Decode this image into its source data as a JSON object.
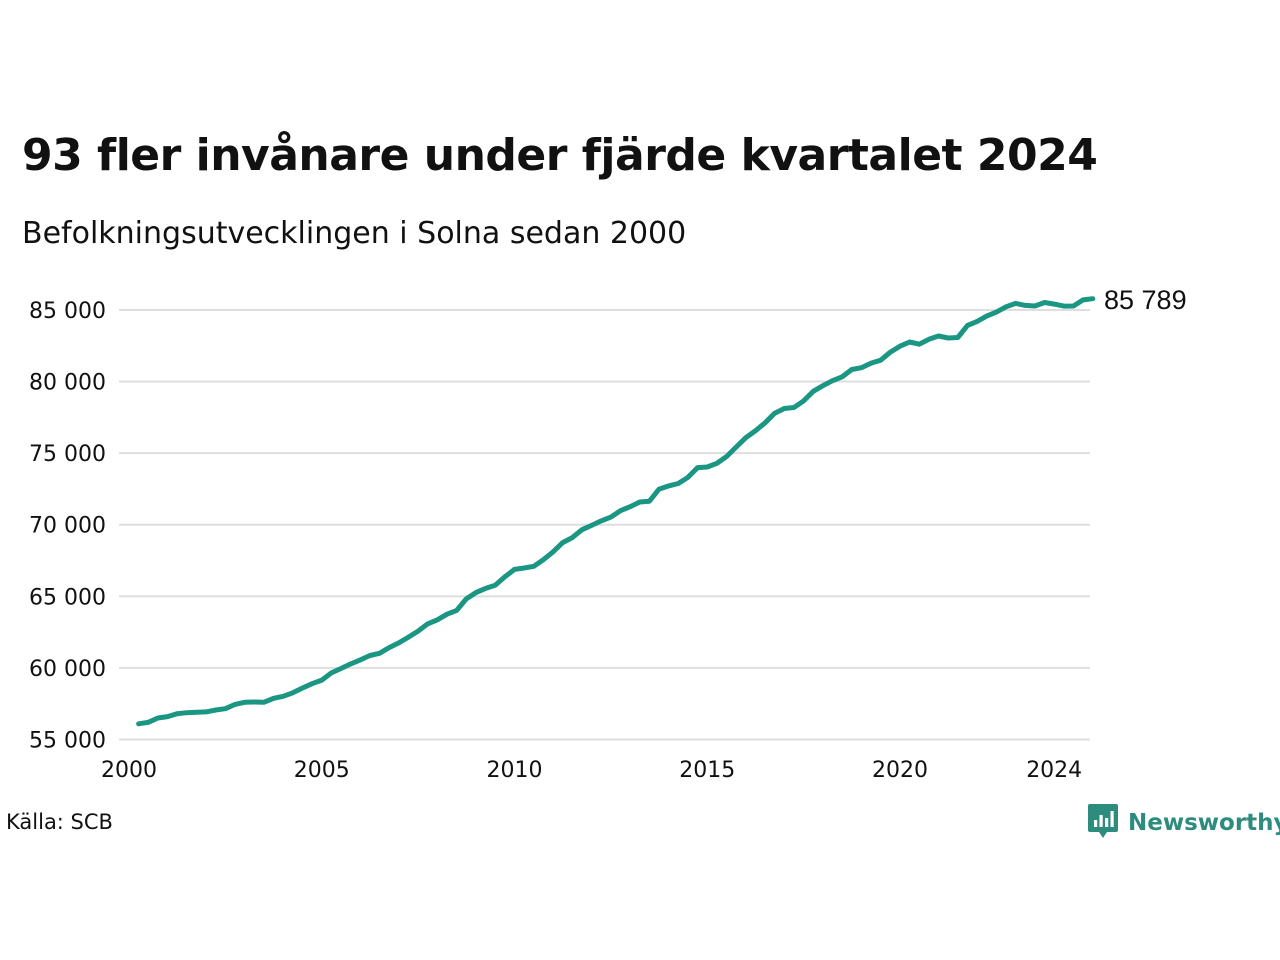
{
  "title": "93 fler invånare under fjärde kvartalet 2024",
  "subtitle": "Befolkningsutvecklingen i Solna sedan 2000",
  "source": "Källa: SCB",
  "brand": {
    "name": "Newsworthy",
    "logo_icon": "bar-chart-speech-bubble-icon",
    "color": "#2e8c7f"
  },
  "colors": {
    "line": "#1a9683",
    "grid": "#dedede",
    "text": "#111111"
  },
  "chart_data": {
    "type": "line",
    "title": "93 fler invånare under fjärde kvartalet 2024",
    "subtitle": "Befolkningsutvecklingen i Solna sedan 2000",
    "xlabel": "",
    "ylabel": "",
    "xlim": [
      2000,
      2025
    ],
    "ylim": [
      55000,
      86500
    ],
    "x_ticks": [
      2000,
      2005,
      2010,
      2015,
      2020,
      2024
    ],
    "x_tick_labels": [
      "2000",
      "2005",
      "2010",
      "2015",
      "2020",
      "2024"
    ],
    "y_ticks": [
      55000,
      60000,
      65000,
      70000,
      75000,
      80000,
      85000
    ],
    "y_tick_labels": [
      "55 000",
      "60 000",
      "65 000",
      "70 000",
      "75 000",
      "80 000",
      "85 000"
    ],
    "grid": true,
    "end_label": "85 789",
    "series": [
      {
        "x": [
          2000.25,
          2000.5,
          2000.75,
          2001.0,
          2001.25,
          2001.5,
          2001.75,
          2002.0,
          2002.25,
          2002.5,
          2002.75,
          2003.0,
          2003.25,
          2003.5,
          2003.75,
          2004.0,
          2004.25,
          2004.5,
          2004.75,
          2005.0,
          2005.25,
          2005.5,
          2005.75,
          2006.0,
          2006.25,
          2006.5,
          2006.75,
          2007.0,
          2007.25,
          2007.5,
          2007.75,
          2008.0,
          2008.25,
          2008.5,
          2008.75,
          2009.0,
          2009.25,
          2009.5,
          2009.75,
          2010.0,
          2010.25,
          2010.5,
          2010.75,
          2011.0,
          2011.25,
          2011.5,
          2011.75,
          2012.0,
          2012.25,
          2012.5,
          2012.75,
          2013.0,
          2013.25,
          2013.5,
          2013.75,
          2014.0,
          2014.25,
          2014.5,
          2014.75,
          2015.0,
          2015.25,
          2015.5,
          2015.75,
          2016.0,
          2016.25,
          2016.5,
          2016.75,
          2017.0,
          2017.25,
          2017.5,
          2017.75,
          2018.0,
          2018.25,
          2018.5,
          2018.75,
          2019.0,
          2019.25,
          2019.5,
          2019.75,
          2020.0,
          2020.25,
          2020.5,
          2020.75,
          2021.0,
          2021.25,
          2021.5,
          2021.75,
          2022.0,
          2022.25,
          2022.5,
          2022.75,
          2023.0,
          2023.25,
          2023.5,
          2023.75,
          2024.0,
          2024.25,
          2024.5,
          2024.75,
          2025.0
        ],
        "values": [
          56100,
          56200,
          56500,
          56600,
          56800,
          56870,
          56900,
          56930,
          57060,
          57150,
          57450,
          57600,
          57620,
          57600,
          57880,
          58020,
          58260,
          58600,
          58900,
          59150,
          59650,
          59960,
          60280,
          60560,
          60870,
          61020,
          61420,
          61750,
          62150,
          62570,
          63080,
          63360,
          63750,
          64020,
          64820,
          65260,
          65550,
          65780,
          66370,
          66880,
          66980,
          67100,
          67560,
          68100,
          68750,
          69100,
          69650,
          69950,
          70270,
          70530,
          70980,
          71260,
          71590,
          71640,
          72490,
          72710,
          72880,
          73310,
          73990,
          74030,
          74290,
          74760,
          75430,
          76080,
          76560,
          77120,
          77790,
          78120,
          78190,
          78650,
          79320,
          79710,
          80060,
          80330,
          80840,
          80970,
          81290,
          81490,
          82060,
          82470,
          82760,
          82610,
          82950,
          83180,
          83040,
          83080,
          83920,
          84200,
          84570,
          84850,
          85220,
          85460,
          85320,
          85280,
          85520,
          85410,
          85270,
          85280,
          85700,
          85789
        ]
      }
    ]
  }
}
